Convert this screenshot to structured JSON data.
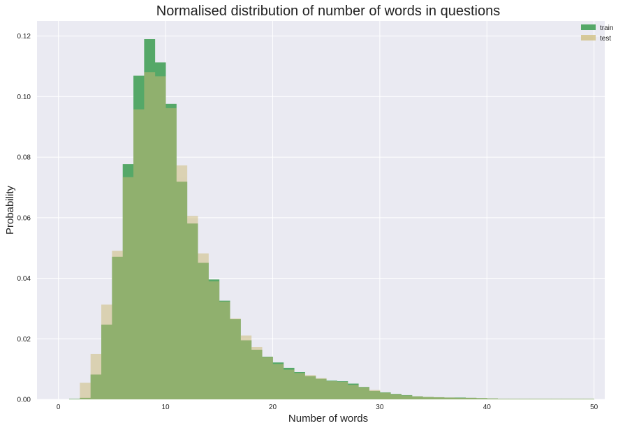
{
  "chart_data": {
    "type": "bar",
    "title": "Normalised distribution of number of words in questions",
    "xlabel": "Number of words",
    "ylabel": "Probability",
    "xlim": [
      -2,
      51
    ],
    "ylim": [
      0,
      0.125
    ],
    "xticks": [
      0,
      10,
      20,
      30,
      40,
      50
    ],
    "yticks": [
      0.0,
      0.02,
      0.04,
      0.06,
      0.08,
      0.1,
      0.12
    ],
    "ytick_labels": [
      "0.00",
      "0.02",
      "0.04",
      "0.06",
      "0.08",
      "0.10",
      "0.12"
    ],
    "grid": true,
    "legend_position": "top-right",
    "bin_width": 1,
    "bin_start": 1,
    "series": [
      {
        "name": "train",
        "color": "#55a868",
        "values": [
          0.0002,
          0.0005,
          0.0082,
          0.0247,
          0.0471,
          0.0777,
          0.1069,
          0.119,
          0.1113,
          0.0976,
          0.0719,
          0.0581,
          0.0451,
          0.0396,
          0.0326,
          0.0265,
          0.0195,
          0.0164,
          0.0141,
          0.0122,
          0.0104,
          0.009,
          0.0077,
          0.0068,
          0.0062,
          0.006,
          0.0052,
          0.0041,
          0.0028,
          0.0023,
          0.0018,
          0.0014,
          0.001,
          0.0008,
          0.0007,
          0.0006,
          0.0006,
          0.0005,
          0.0004,
          0.0003,
          0.0002,
          0.0002,
          0.0002,
          0.0002,
          0.0002,
          0.0002,
          0.0002,
          0.0002,
          0.0002
        ]
      },
      {
        "name": "test",
        "color": "#ccb974",
        "alpha": 0.5,
        "values": [
          0.0001,
          0.0055,
          0.015,
          0.0313,
          0.0491,
          0.0734,
          0.0958,
          0.1081,
          0.1067,
          0.0962,
          0.0773,
          0.0606,
          0.0482,
          0.039,
          0.0323,
          0.0267,
          0.0211,
          0.0173,
          0.014,
          0.0117,
          0.0098,
          0.0087,
          0.008,
          0.007,
          0.006,
          0.0058,
          0.0048,
          0.004,
          0.0031,
          0.0022,
          0.0017,
          0.0013,
          0.001,
          0.0008,
          0.0007,
          0.0006,
          0.0005,
          0.0005,
          0.0004,
          0.0003,
          0.0002,
          0.0002,
          0.0002,
          0.0002,
          0.0002,
          0.0002,
          0.0002,
          0.0002,
          0.0002
        ]
      }
    ],
    "background_color": "#eaeaf2",
    "grid_color": "#ffffff"
  }
}
